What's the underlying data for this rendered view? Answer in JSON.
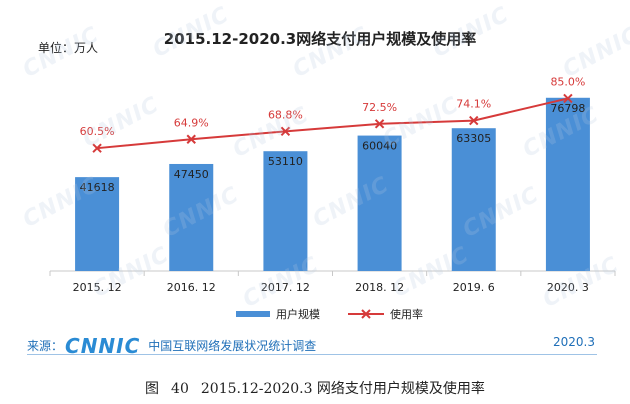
{
  "chart_data": {
    "type": "bar",
    "title": "2015.12-2020.3网络支付用户规模及使用率",
    "unit_label": "单位：万人",
    "categories": [
      "2015. 12",
      "2016. 12",
      "2017. 12",
      "2018. 12",
      "2019. 6",
      "2020. 3"
    ],
    "series": [
      {
        "name": "用户规模",
        "kind": "bar",
        "values": [
          41618,
          47450,
          53110,
          60040,
          63305,
          76798
        ],
        "labels": [
          "41618",
          "47450",
          "53110",
          "60040",
          "63305",
          "76798"
        ]
      },
      {
        "name": "使用率",
        "kind": "line",
        "values": [
          60.5,
          64.9,
          68.8,
          72.5,
          74.1,
          85.0
        ],
        "labels": [
          "60.5%",
          "64.9%",
          "68.8%",
          "72.5%",
          "74.1%",
          "85.0%"
        ]
      }
    ],
    "ylim_bar": [
      0,
      90000
    ],
    "ylim_line": [
      0,
      100
    ],
    "grid": false,
    "legend_position": "bottom",
    "colors": {
      "bar": "#4a8fd6",
      "line": "#d63a3a",
      "line_label": "#d63a3a",
      "text": "#222222",
      "axis": "#c8c8c8"
    }
  },
  "source": {
    "prefix": "来源：",
    "logo": "CNNIC",
    "text": "中国互联网络发展状况统计调查",
    "date": "2020.3"
  },
  "caption": {
    "figure": "图",
    "number": "40",
    "text": "2015.12-2020.3 网络支付用户规模及使用率"
  },
  "watermark": "CNNIC"
}
